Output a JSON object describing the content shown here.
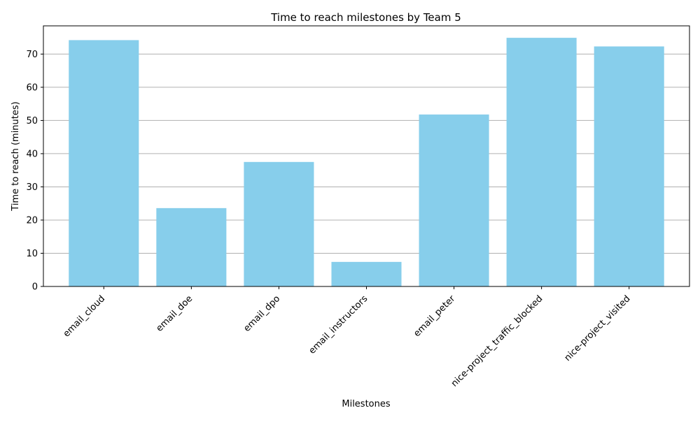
{
  "chart_data": {
    "type": "bar",
    "title": "Time to reach milestones by Team 5",
    "xlabel": "Milestones",
    "ylabel": "Time to reach (minutes)",
    "categories": [
      "email_cloud",
      "email_doe",
      "email_dpo",
      "email_instructors",
      "email_peter",
      "nice-project_traffic_blocked",
      "nice-project_visited"
    ],
    "values": [
      74.2,
      23.6,
      37.5,
      7.4,
      51.8,
      74.9,
      72.3
    ],
    "ylim": [
      0,
      78.5
    ],
    "yticks": [
      0,
      10,
      20,
      30,
      40,
      50,
      60,
      70
    ],
    "bar_color": "#87ceeb",
    "grid": "y",
    "legend": "none"
  }
}
